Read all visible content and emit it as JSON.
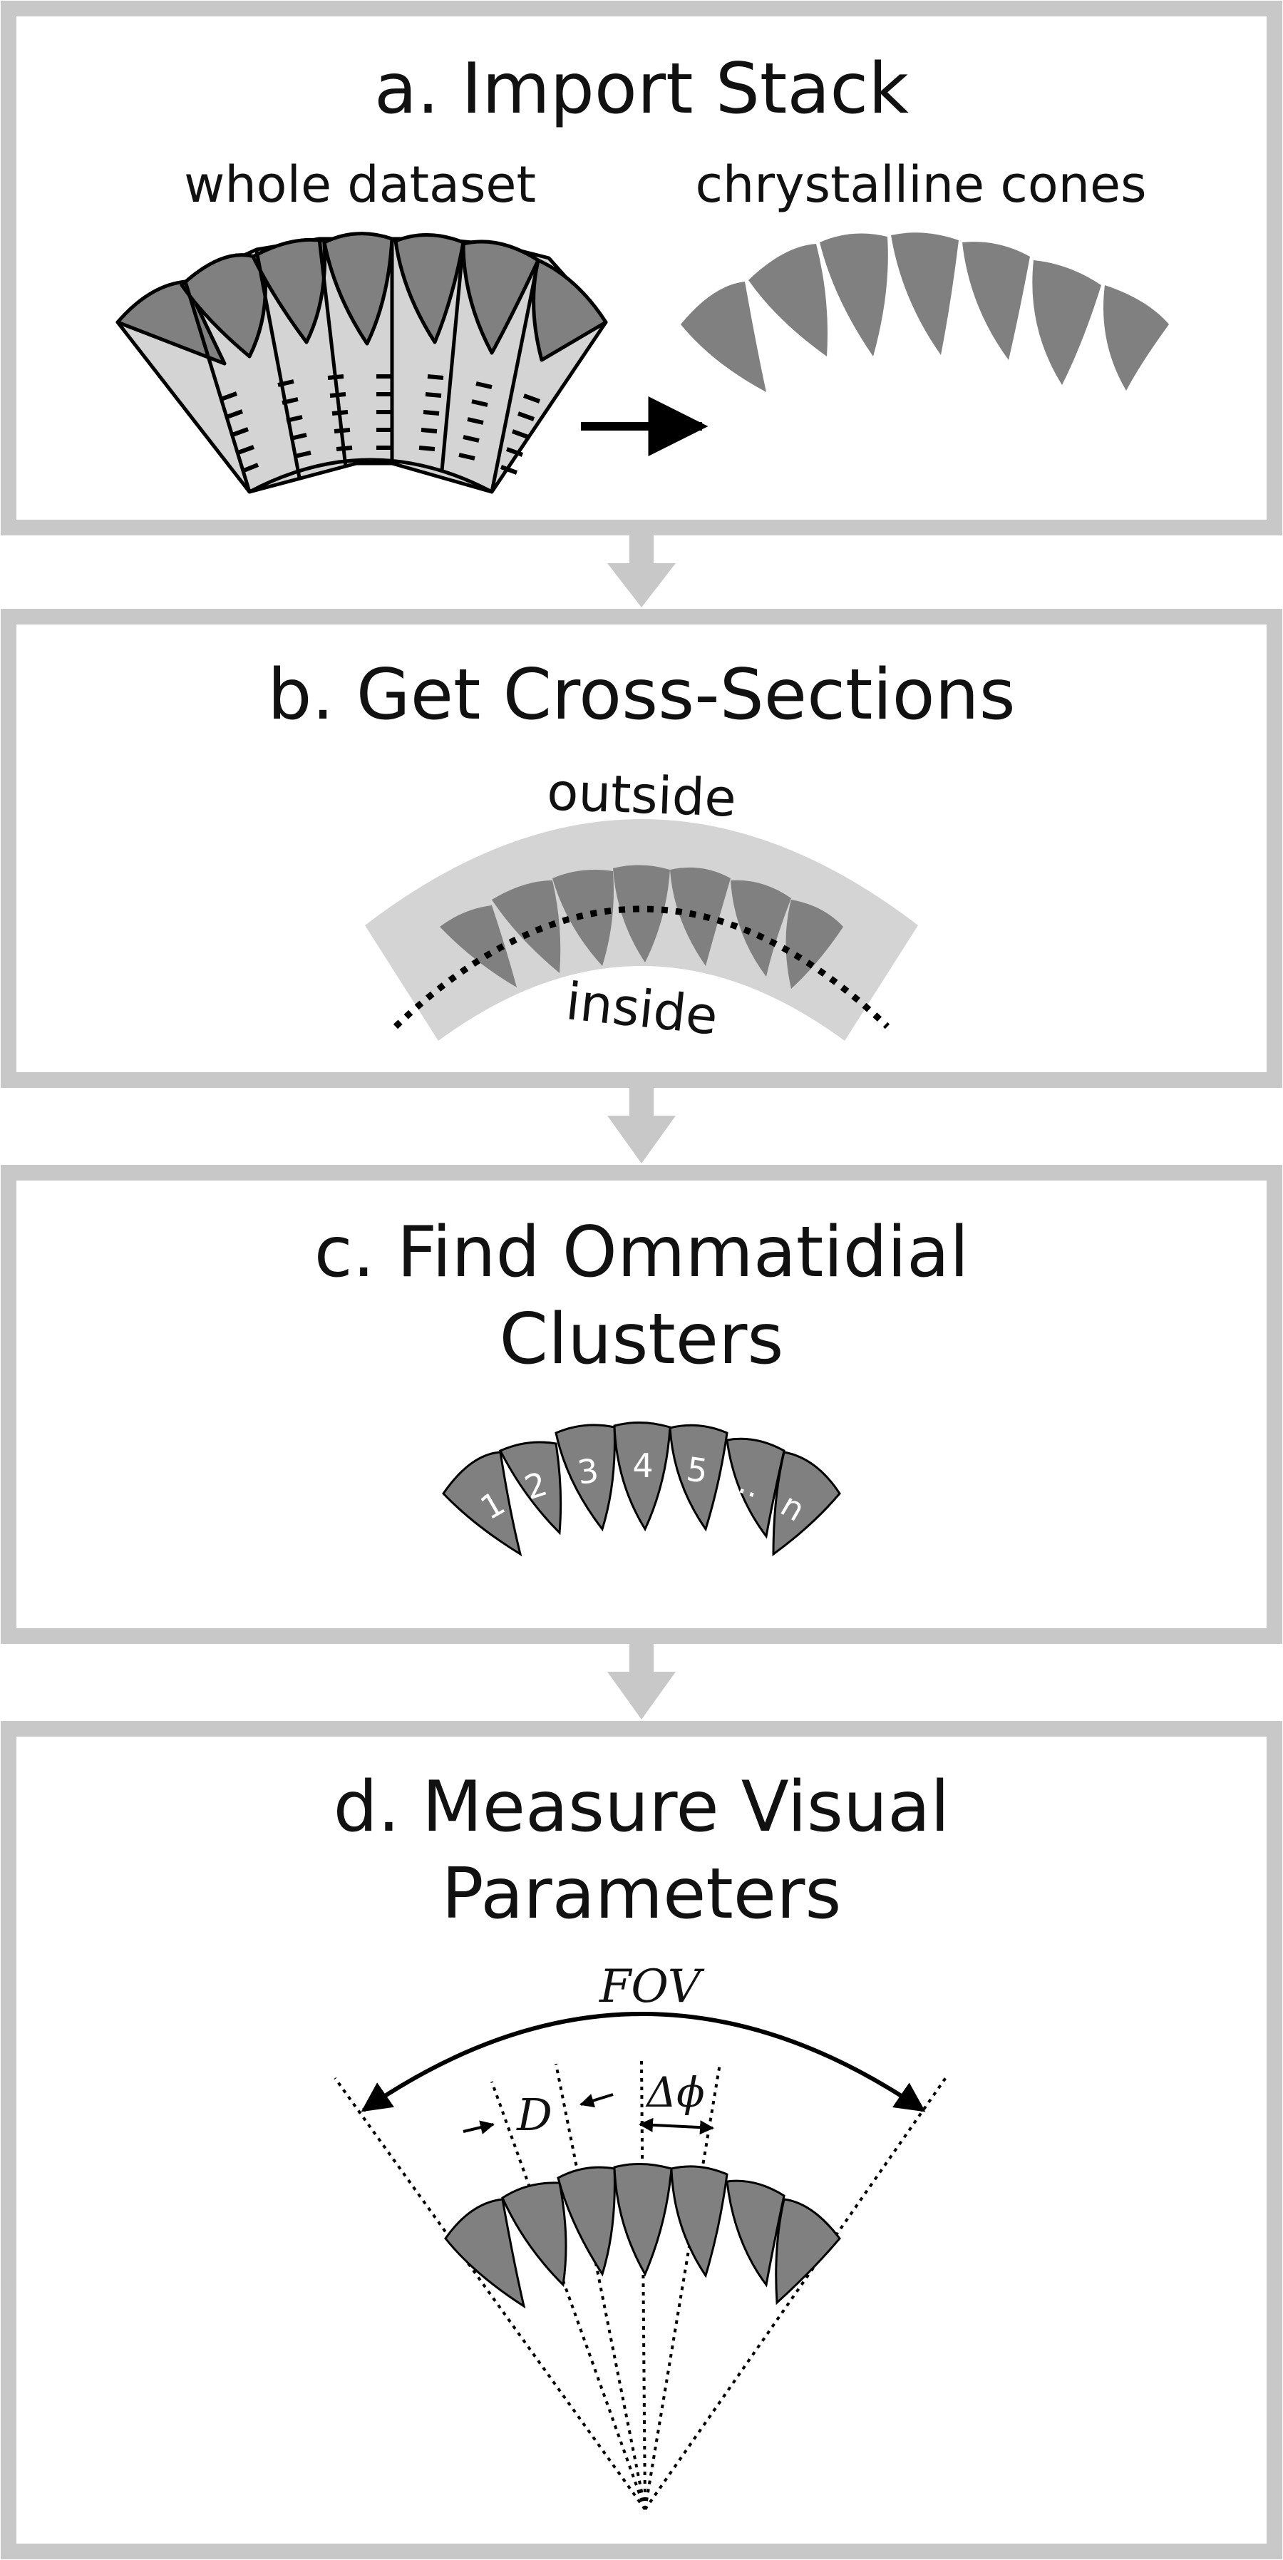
{
  "colors": {
    "frame": "#c8c8c8",
    "cone_fill": "#808080",
    "light_fill": "#d4d4d4",
    "ink": "#000000"
  },
  "panels": [
    {
      "id": "a",
      "title": "a. Import Stack",
      "left_label": "whole dataset",
      "right_label": "chrystalline cones"
    },
    {
      "id": "b",
      "title": "b. Get Cross-Sections",
      "outer_label": "outside",
      "inner_label": "inside"
    },
    {
      "id": "c",
      "title_line1": "c. Find Ommatidial",
      "title_line2": "Clusters",
      "cone_numbers": [
        "1",
        "2",
        "3",
        "4",
        "5",
        "...",
        "n"
      ]
    },
    {
      "id": "d",
      "title_line1": "d. Measure Visual",
      "title_line2": "Parameters",
      "fov_label": "FOV",
      "diameter_label": "D",
      "angle_label": "Δϕ"
    }
  ],
  "icons": [
    "flow-arrow-down-icon",
    "right-arrow-icon"
  ]
}
